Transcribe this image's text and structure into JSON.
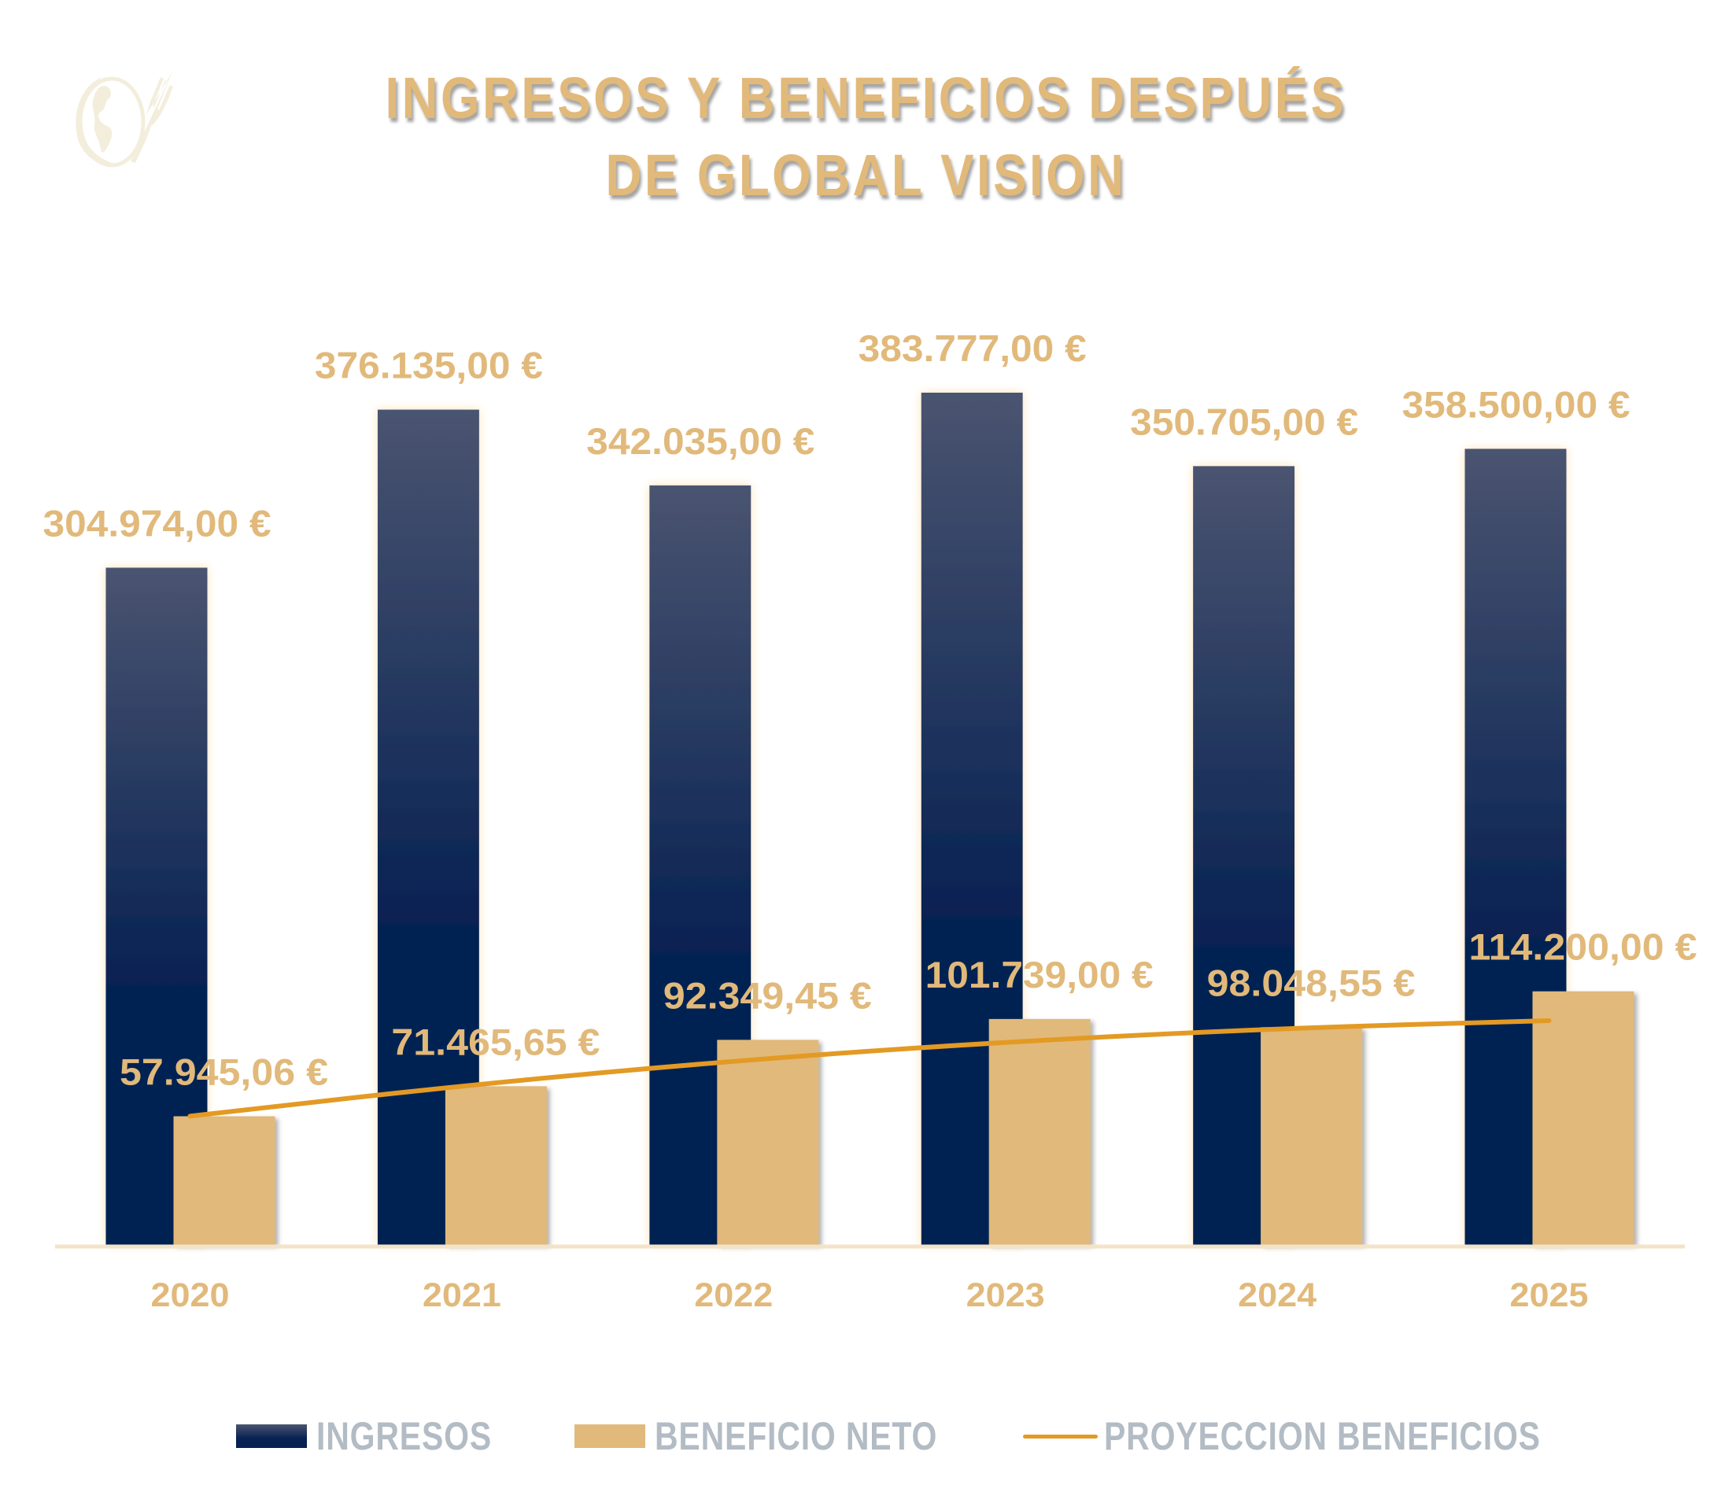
{
  "title_line1": "INGRESOS Y BENEFICIOS DESPUÉS",
  "title_line2": "DE GLOBAL VISION",
  "logo": {
    "icon": "globe-fork-icon"
  },
  "legend": {
    "ingresos": "INGRESOS",
    "beneficio": "BENEFICIO NETO",
    "proyeccion": "PROYECCION BENEFICIOS"
  },
  "colors": {
    "ingresos_top": "#4a5470",
    "ingresos_bottom": "#062152",
    "beneficio": "#e1b97a",
    "proyeccion": "#e39a24",
    "labels": "#e1b97a",
    "legend_text": "#b3bcc4",
    "axis": "#f3e3c8"
  },
  "chart_data": {
    "type": "bar",
    "title": "INGRESOS Y BENEFICIOS DESPUÉS DE GLOBAL VISION",
    "xlabel": "",
    "ylabel": "",
    "ylim": [
      0,
      400000
    ],
    "grid": false,
    "legend_position": "bottom",
    "categories": [
      "2020",
      "2021",
      "2022",
      "2023",
      "2024",
      "2025"
    ],
    "series": [
      {
        "name": "INGRESOS",
        "type": "bar",
        "values": [
          304974.0,
          376135.0,
          342035.0,
          383777.0,
          350705.0,
          358500.0
        ],
        "labels": [
          "304.974,00 €",
          "376.135,00 €",
          "342.035,00 €",
          "383.777,00 €",
          "350.705,00 €",
          "358.500,00 €"
        ]
      },
      {
        "name": "BENEFICIO NETO",
        "type": "bar",
        "values": [
          57945.06,
          71465.65,
          92349.45,
          101739.0,
          98048.55,
          114200.0
        ],
        "labels": [
          "57.945,06 €",
          "71.465,65 €",
          "92.349,45 €",
          "101.739,00 €",
          "98.048,55 €",
          "114.200,00 €"
        ]
      },
      {
        "name": "PROYECCION BENEFICIOS",
        "type": "line",
        "trendline": "polynomial",
        "values": [
          58000,
          71800,
          83000,
          91500,
          97500,
          101000
        ]
      }
    ]
  }
}
